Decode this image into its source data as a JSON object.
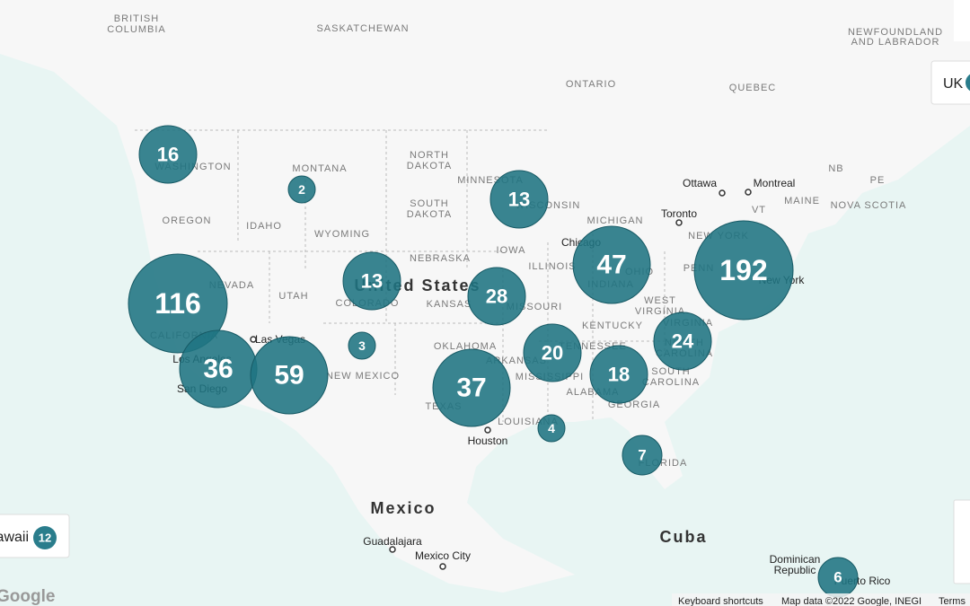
{
  "map": {
    "labels": [
      "BRITISH",
      "COLUMBIA",
      "SASKATCHEWAN",
      "ONTARIO",
      "QUEBEC",
      "NEWFOUNDLAND",
      "AND LABRADOR",
      "WASHINGTON",
      "MONTANA",
      "NORTH",
      "DAKOTA",
      "MINNESOTA",
      "SOUTH",
      "DAKOTA",
      "OREGON",
      "IDAHO",
      "WYOMING",
      "WISCONSIN",
      "MICHIGAN",
      "NB",
      "PE",
      "MAINE",
      "NOVA SCOTIA",
      "VT",
      "NEW YORK",
      "IOWA",
      "NEBRASKA",
      "ILLINOIS",
      "OHIO",
      "PENN",
      "NEVADA",
      "UTAH",
      "COLORADO",
      "KANSAS",
      "MISSOURI",
      "INDIANA",
      "WEST",
      "VIRGINIA",
      "KENTUCKY",
      "VIRGINIA",
      "CALIFORNIA",
      "NEW MEXICO",
      "OKLAHOMA",
      "ARKANSAS",
      "TENNESSEE",
      "NORTH",
      "CAROLINA",
      "TEXAS",
      "MISSISSIPPI",
      "ALABAMA",
      "GEORGIA",
      "SOUTH",
      "CAROLINA",
      "LOUISIANA",
      "FLORIDA"
    ],
    "countries": [
      "United States",
      "Mexico",
      "Cuba"
    ],
    "cities": [
      "Ottawa",
      "Montreal",
      "Toronto",
      "Chicago",
      "Las Vegas",
      "Los Angeles",
      "San Diego",
      "Houston",
      "Guadalajara",
      "Mexico City",
      "New York",
      "Dominican",
      "Republic",
      "Puerto Rico"
    ]
  },
  "clusters": [
    16,
    2,
    13,
    13,
    116,
    28,
    47,
    192,
    3,
    36,
    59,
    37,
    20,
    18,
    24,
    4,
    7,
    6
  ],
  "panels": {
    "hawaii": {
      "label": "Hawaii",
      "count": 12
    },
    "uk": {
      "label": "UK"
    }
  },
  "footer": {
    "logo": "Google",
    "shortcuts": "Keyboard shortcuts",
    "attribution": "Map data ©2022 Google, INEGI",
    "terms": "Terms"
  }
}
